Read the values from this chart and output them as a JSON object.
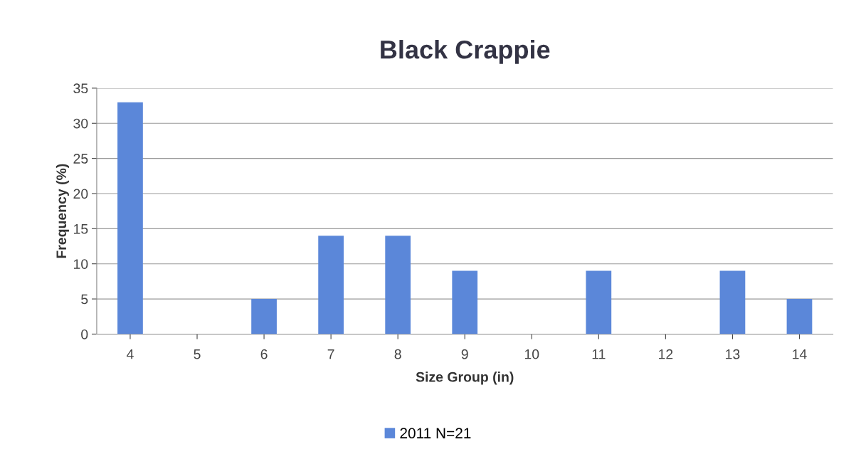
{
  "chart_data": {
    "type": "bar",
    "title": "Black Crappie",
    "xlabel": "Size Group (in)",
    "ylabel": "Frequency (%)",
    "categories": [
      "4",
      "5",
      "6",
      "7",
      "8",
      "9",
      "10",
      "11",
      "12",
      "13",
      "14"
    ],
    "series": [
      {
        "name": "2011 N=21",
        "color": "#5b87d9",
        "values": [
          33,
          0,
          5,
          14,
          14,
          9,
          0,
          9,
          0,
          9,
          5
        ]
      }
    ],
    "ylim": [
      0,
      35
    ],
    "yticks": [
      0,
      5,
      10,
      15,
      20,
      25,
      30,
      35
    ],
    "grid": "y",
    "legend": "bottom"
  }
}
